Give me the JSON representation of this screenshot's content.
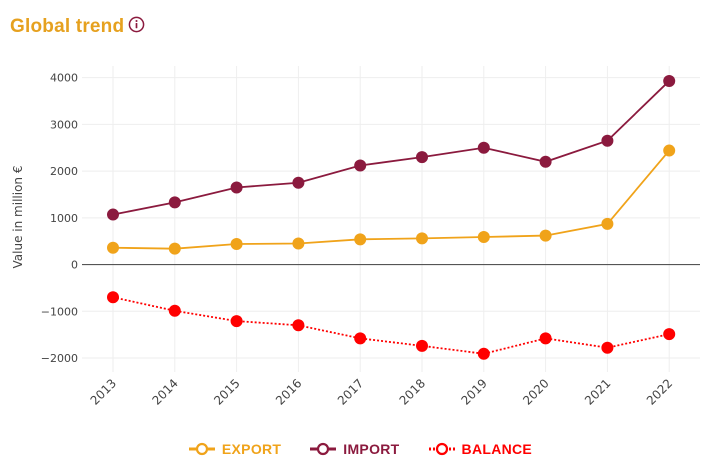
{
  "header": {
    "title": "Global trend",
    "title_color": "#e6a11f",
    "info_icon": "info-circle-icon",
    "info_icon_color": "#8b1a3e"
  },
  "colors": {
    "export": "#f0a31a",
    "import": "#8b1a3e",
    "balance": "#ff0000",
    "zero_line": "#555555",
    "grid": "#eeeeee"
  },
  "chart_data": {
    "type": "line",
    "categories": [
      "2013",
      "2014",
      "2015",
      "2016",
      "2017",
      "2018",
      "2019",
      "2020",
      "2021",
      "2022"
    ],
    "series": [
      {
        "name": "EXPORT",
        "style": "solid",
        "values": [
          360,
          340,
          440,
          450,
          540,
          560,
          590,
          620,
          870,
          2440
        ]
      },
      {
        "name": "IMPORT",
        "style": "solid",
        "values": [
          1070,
          1330,
          1650,
          1750,
          2120,
          2300,
          2500,
          2200,
          2650,
          3930
        ]
      },
      {
        "name": "BALANCE",
        "style": "dotted",
        "values": [
          -700,
          -990,
          -1210,
          -1300,
          -1580,
          -1740,
          -1910,
          -1580,
          -1780,
          -1490
        ]
      }
    ],
    "ylabel": "Value in million €",
    "xlabel": "",
    "yticks": [
      4000,
      3000,
      2000,
      1000,
      0,
      -1000,
      -2000
    ],
    "ytick_labels": [
      "4000",
      "3000",
      "2000",
      "1000",
      "0",
      "−1000",
      "−2000"
    ],
    "ylim": [
      -2300,
      4250
    ],
    "grid": true,
    "legend": "bottom-center"
  }
}
